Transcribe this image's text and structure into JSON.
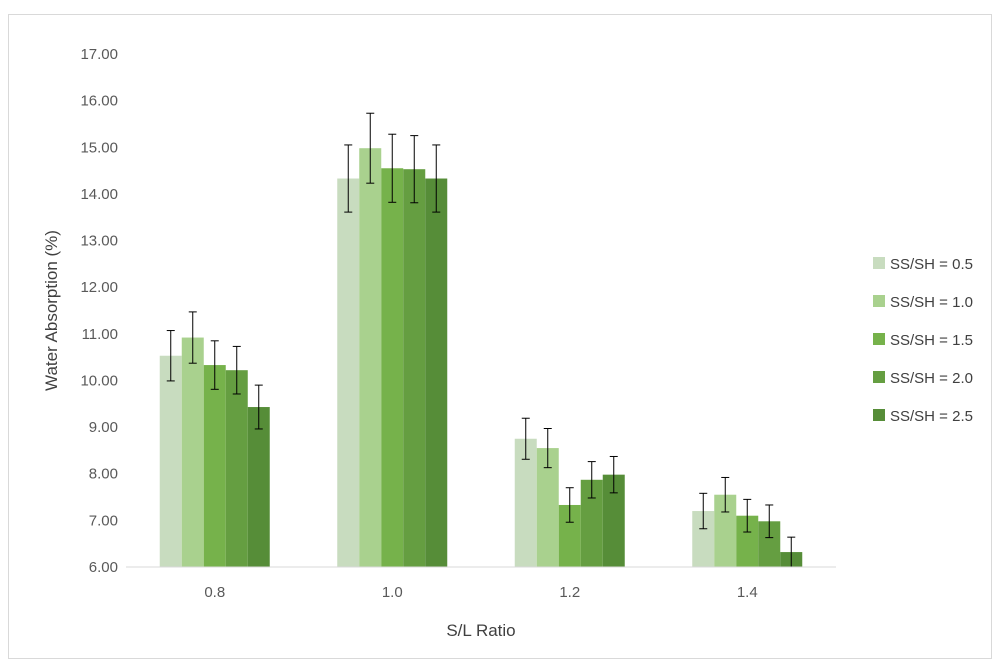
{
  "chart_data": {
    "type": "bar",
    "title": "",
    "xlabel": "S/L Ratio",
    "ylabel": "Water Absorption (%)",
    "categories": [
      "0.8",
      "1.0",
      "1.2",
      "1.4"
    ],
    "ylim": [
      6.0,
      17.0
    ],
    "yticks": [
      "6.00",
      "7.00",
      "8.00",
      "9.00",
      "10.00",
      "11.00",
      "12.00",
      "13.00",
      "14.00",
      "15.00",
      "16.00",
      "17.00"
    ],
    "grid": false,
    "legend_position": "right",
    "series": [
      {
        "name": "SS/SH = 0.5",
        "color": "#c8dcbf",
        "values": [
          10.53,
          14.33,
          8.75,
          7.2
        ],
        "errors": [
          0.54,
          0.72,
          0.44,
          0.38
        ]
      },
      {
        "name": "SS/SH = 1.0",
        "color": "#a9d18e",
        "values": [
          10.92,
          14.98,
          8.55,
          7.55
        ],
        "errors": [
          0.55,
          0.75,
          0.42,
          0.37
        ]
      },
      {
        "name": "SS/SH = 1.5",
        "color": "#76b24b",
        "values": [
          10.33,
          14.55,
          7.33,
          7.1
        ],
        "errors": [
          0.52,
          0.73,
          0.37,
          0.35
        ]
      },
      {
        "name": "SS/SH = 2.0",
        "color": "#659e41",
        "values": [
          10.22,
          14.53,
          7.87,
          6.98
        ],
        "errors": [
          0.51,
          0.72,
          0.39,
          0.35
        ]
      },
      {
        "name": "SS/SH = 2.5",
        "color": "#568d38",
        "values": [
          9.43,
          14.33,
          7.98,
          6.32
        ],
        "errors": [
          0.47,
          0.72,
          0.39,
          0.32
        ]
      }
    ]
  }
}
